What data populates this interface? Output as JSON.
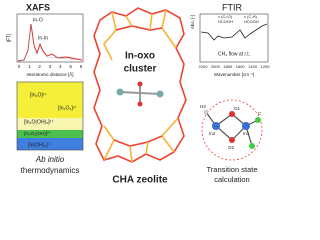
{
  "xafs": {
    "title": "XAFS",
    "y_label": "|FT|",
    "x_label": "Interatomic distance [Å]",
    "x_ticks": [
      "0",
      "1",
      "2",
      "3",
      "4",
      "5",
      "6"
    ],
    "peak_labels": [
      "In-O",
      "In-In"
    ]
  },
  "thermo": {
    "phases": [
      "[In₂O]²⁺",
      "[In₂O₃]²⁺",
      "[In₂O(OH)₂]²⁺",
      "[In₂O₂(OH)]²⁺",
      "[In(OH)₂]⁺"
    ],
    "caption_italic": "Ab initio",
    "caption": "thermodynamics"
  },
  "center": {
    "cluster_line1": "In-oxo",
    "cluster_line2": "cluster",
    "caption": "CHA zeolite"
  },
  "ftir": {
    "title": "FTIR",
    "y_label": "Abs. [-]",
    "band1": "ν (C=O)",
    "band1_species": "HCOOH",
    "band2": "ν (C-H)",
    "band2_species": "HCOOH",
    "condition": "CH₄ flow at r.t.",
    "x_ticks": [
      "2200",
      "2000",
      "1800",
      "1600",
      "1400",
      "1200"
    ],
    "x_label": "Wavenumber [cm⁻¹]"
  },
  "ts": {
    "atoms": [
      "O1",
      "In2",
      "In1",
      "O2",
      "H3",
      "C"
    ],
    "caption_line1": "Transition state",
    "caption_line2": "calculation"
  }
}
